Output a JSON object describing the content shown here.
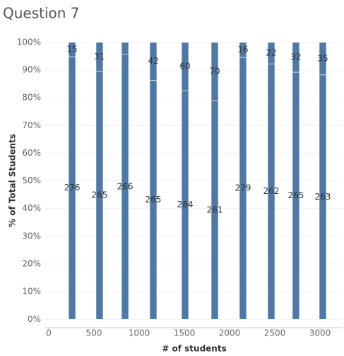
{
  "chart_data": {
    "type": "stacked_percent_bar",
    "title": "Question 7",
    "x_label": "# of students",
    "y_label": "% of Total Students",
    "x": [
      258,
      562,
      844,
      1156,
      1508,
      1836,
      2148,
      2461,
      2734,
      3031
    ],
    "series": [
      {
        "color": "#4e79a7",
        "values": [
          276,
          265,
          266,
          265,
          284,
          261,
          279,
          262,
          265,
          263
        ]
      },
      {
        "color": "#4e79a7",
        "values": [
          15,
          31,
          12,
          42,
          60,
          70,
          16,
          22,
          32,
          35
        ],
        "value_labels": [
          "15",
          "31",
          null,
          "42",
          "60",
          "70",
          "16",
          "22",
          "32",
          "35"
        ]
      }
    ],
    "xlim": [
      -50,
      3250
    ],
    "xticks": [
      0,
      500,
      1000,
      1500,
      2000,
      2500,
      3000
    ],
    "ylim": [
      -3,
      102
    ],
    "yticks": [
      {
        "value": 0,
        "label": "0%"
      },
      {
        "value": 10,
        "label": "10%"
      },
      {
        "value": 20,
        "label": "20%"
      },
      {
        "value": 30,
        "label": "30%"
      },
      {
        "value": 40,
        "label": "40%"
      },
      {
        "value": 50,
        "label": "50%"
      },
      {
        "value": 60,
        "label": "60%"
      },
      {
        "value": 70,
        "label": "70%"
      },
      {
        "value": 80,
        "label": "80%"
      },
      {
        "value": 90,
        "label": "90%"
      },
      {
        "value": 100,
        "label": "100%"
      }
    ],
    "grid": true
  }
}
